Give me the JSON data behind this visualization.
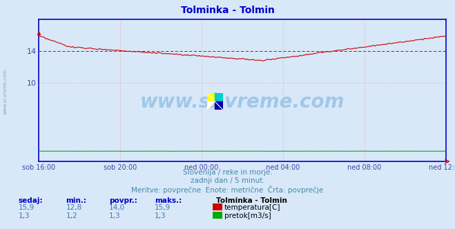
{
  "title": "Tolminka - Tolmin",
  "title_color": "#0000cc",
  "bg_color": "#d8e8f8",
  "plot_bg_color": "#d8e8f8",
  "grid_color": "#ff9999",
  "xlabel_color": "#4444aa",
  "ylabel_color": "#4444aa",
  "axis_color": "#0000cc",
  "watermark_text": "www.si-vreme.com",
  "watermark_color": "#a0c8e8",
  "subtitle1": "Slovenija / reke in morje.",
  "subtitle2": "zadnji dan / 5 minut.",
  "subtitle3": "Meritve: povprečne  Enote: metrične  Črta: povprečje",
  "subtitle_color": "#4488aa",
  "table_headers": [
    "sedaj:",
    "min.:",
    "povpr.:",
    "maks.:"
  ],
  "table_header_color": "#0000cc",
  "table_values_temp": [
    "15,9",
    "12,8",
    "14,0",
    "15,9"
  ],
  "table_values_flow": [
    "1,3",
    "1,2",
    "1,3",
    "1,3"
  ],
  "table_color": "#4477aa",
  "legend_title": "Tolminka - Tolmin",
  "legend_temp_label": "temperatura[C]",
  "legend_flow_label": "pretok[m3/s]",
  "legend_temp_color": "#cc0000",
  "legend_flow_color": "#00aa00",
  "xtick_labels": [
    "sob 16:00",
    "sob 20:00",
    "ned 00:00",
    "ned 04:00",
    "ned 08:00",
    "ned 12:00"
  ],
  "ylim": [
    0,
    18
  ],
  "temp_avg": 14.0,
  "temp_min": 12.8,
  "temp_max": 15.9,
  "flow_avg": 1.3,
  "n_points": 288
}
